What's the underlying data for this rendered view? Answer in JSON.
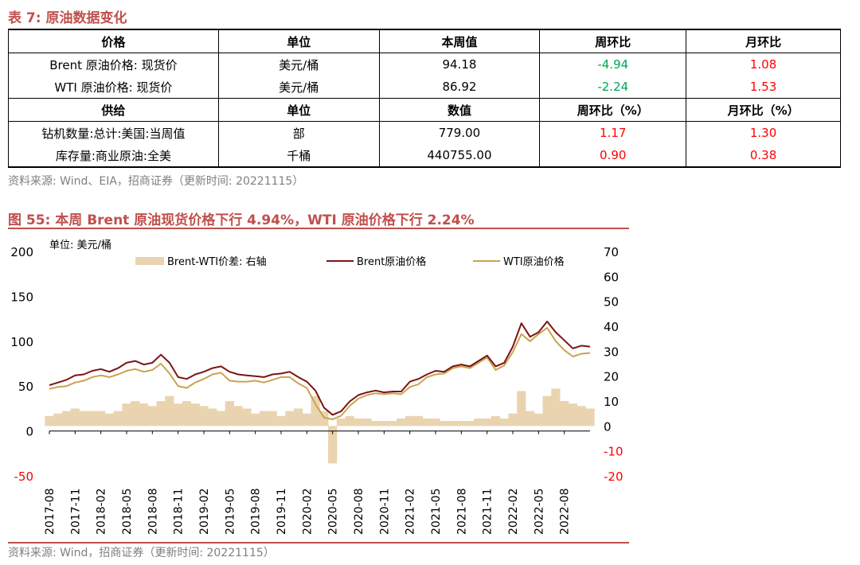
{
  "table": {
    "title": "表 7:  原油数据变化",
    "headers": [
      "价格",
      "单位",
      "本周值",
      "周环比",
      "月环比"
    ],
    "price_rows": [
      {
        "name": "Brent 原油价格:  现货价",
        "unit": "美元/桶",
        "value": "94.18",
        "wow": "-4.94",
        "mom": "1.08"
      },
      {
        "name": "WTI 原油价格:  现货价",
        "unit": "美元/桶",
        "value": "86.92",
        "wow": "-2.24",
        "mom": "1.53"
      }
    ],
    "supply_headers": [
      "供给",
      "单位",
      "数值",
      "周环比（%）",
      "月环比（%）"
    ],
    "supply_rows": [
      {
        "name": "钻机数量:总计:美国:当周值",
        "unit": "部",
        "value": "779.00",
        "wow": "1.17",
        "mom": "1.30"
      },
      {
        "name": "库存量:商业原油:全美",
        "unit": "千桶",
        "value": "440755.00",
        "wow": "0.90",
        "mom": "0.38"
      }
    ],
    "source": "资料来源:  Wind、EIA，招商证券（更新时间:  20221115）"
  },
  "figure": {
    "title": "图 55:  本周 Brent 原油现货价格下行 4.94%，WTI 原油价格下行 2.24%",
    "source": "资料来源:  Wind，招商证券（更新时间:  20221115）"
  },
  "colors": {
    "brent": "#7b1416",
    "wti": "#c8a450",
    "spread": "#ead4b0",
    "accent": "#c0504d",
    "green": "#00a651",
    "red": "#ff0000"
  },
  "chart_data": {
    "type": "line",
    "unit_label": "单位:  美元/桶",
    "legend": [
      "Brent-WTI价差:  右轴",
      "Brent原油价格",
      "WTI原油价格"
    ],
    "ylim_left": [
      -50,
      200
    ],
    "yticks_left": [
      "200",
      "150",
      "100",
      "50",
      "0",
      "-50"
    ],
    "ylim_right": [
      -20,
      70
    ],
    "yticks_right": [
      "70",
      "60",
      "50",
      "40",
      "30",
      "20",
      "10",
      "0",
      "-10",
      "-20"
    ],
    "x_tick_labels": [
      "2017-08",
      "2017-11",
      "2018-02",
      "2018-05",
      "2018-08",
      "2018-11",
      "2019-02",
      "2019-05",
      "2019-08",
      "2019-11",
      "2020-02",
      "2020-05",
      "2020-08",
      "2020-11",
      "2021-02",
      "2021-05",
      "2021-08",
      "2021-11",
      "2022-02",
      "2022-05",
      "2022-08"
    ],
    "x_month_range": [
      0,
      63
    ],
    "series": [
      {
        "name": "Brent原油价格",
        "points": [
          [
            0,
            51
          ],
          [
            1,
            54
          ],
          [
            2,
            57
          ],
          [
            3,
            62
          ],
          [
            4,
            63
          ],
          [
            5,
            67
          ],
          [
            6,
            69
          ],
          [
            7,
            66
          ],
          [
            8,
            70
          ],
          [
            9,
            76
          ],
          [
            10,
            78
          ],
          [
            11,
            74
          ],
          [
            12,
            76
          ],
          [
            13,
            85
          ],
          [
            14,
            76
          ],
          [
            15,
            60
          ],
          [
            16,
            58
          ],
          [
            17,
            63
          ],
          [
            18,
            66
          ],
          [
            19,
            70
          ],
          [
            20,
            72
          ],
          [
            21,
            66
          ],
          [
            22,
            63
          ],
          [
            23,
            62
          ],
          [
            24,
            61
          ],
          [
            25,
            60
          ],
          [
            26,
            63
          ],
          [
            27,
            64
          ],
          [
            28,
            66
          ],
          [
            29,
            60
          ],
          [
            30,
            55
          ],
          [
            31,
            45
          ],
          [
            32,
            26
          ],
          [
            33,
            18
          ],
          [
            34,
            22
          ],
          [
            35,
            33
          ],
          [
            36,
            40
          ],
          [
            37,
            43
          ],
          [
            38,
            45
          ],
          [
            39,
            43
          ],
          [
            40,
            44
          ],
          [
            41,
            44
          ],
          [
            42,
            55
          ],
          [
            43,
            58
          ],
          [
            44,
            63
          ],
          [
            45,
            67
          ],
          [
            46,
            66
          ],
          [
            47,
            72
          ],
          [
            48,
            74
          ],
          [
            49,
            72
          ],
          [
            50,
            78
          ],
          [
            51,
            84
          ],
          [
            52,
            72
          ],
          [
            53,
            76
          ],
          [
            54,
            94
          ],
          [
            55,
            120
          ],
          [
            56,
            105
          ],
          [
            57,
            110
          ],
          [
            58,
            122
          ],
          [
            59,
            110
          ],
          [
            60,
            101
          ],
          [
            61,
            92
          ],
          [
            62,
            95
          ],
          [
            63,
            94
          ]
        ]
      },
      {
        "name": "WTI原油价格",
        "points": [
          [
            0,
            47
          ],
          [
            1,
            49
          ],
          [
            2,
            50
          ],
          [
            3,
            54
          ],
          [
            4,
            56
          ],
          [
            5,
            60
          ],
          [
            6,
            62
          ],
          [
            7,
            60
          ],
          [
            8,
            63
          ],
          [
            9,
            67
          ],
          [
            10,
            69
          ],
          [
            11,
            66
          ],
          [
            12,
            68
          ],
          [
            13,
            75
          ],
          [
            14,
            64
          ],
          [
            15,
            50
          ],
          [
            16,
            48
          ],
          [
            17,
            54
          ],
          [
            18,
            58
          ],
          [
            19,
            63
          ],
          [
            20,
            65
          ],
          [
            21,
            56
          ],
          [
            22,
            55
          ],
          [
            23,
            55
          ],
          [
            24,
            56
          ],
          [
            25,
            54
          ],
          [
            26,
            57
          ],
          [
            27,
            60
          ],
          [
            28,
            60
          ],
          [
            29,
            53
          ],
          [
            30,
            48
          ],
          [
            31,
            30
          ],
          [
            32,
            15
          ],
          [
            33,
            13
          ],
          [
            34,
            17
          ],
          [
            35,
            28
          ],
          [
            36,
            36
          ],
          [
            37,
            40
          ],
          [
            38,
            42
          ],
          [
            39,
            41
          ],
          [
            40,
            42
          ],
          [
            41,
            41
          ],
          [
            42,
            49
          ],
          [
            43,
            52
          ],
          [
            44,
            60
          ],
          [
            45,
            63
          ],
          [
            46,
            64
          ],
          [
            47,
            70
          ],
          [
            48,
            72
          ],
          [
            49,
            70
          ],
          [
            50,
            76
          ],
          [
            51,
            82
          ],
          [
            52,
            68
          ],
          [
            53,
            73
          ],
          [
            54,
            88
          ],
          [
            55,
            108
          ],
          [
            56,
            100
          ],
          [
            57,
            108
          ],
          [
            58,
            115
          ],
          [
            59,
            100
          ],
          [
            60,
            90
          ],
          [
            61,
            83
          ],
          [
            62,
            86
          ],
          [
            63,
            87
          ]
        ]
      },
      {
        "name": "Brent-WTI价差",
        "points": [
          [
            0,
            4
          ],
          [
            1,
            5
          ],
          [
            2,
            6
          ],
          [
            3,
            7
          ],
          [
            4,
            6
          ],
          [
            5,
            6
          ],
          [
            6,
            6
          ],
          [
            7,
            5
          ],
          [
            8,
            6
          ],
          [
            9,
            9
          ],
          [
            10,
            10
          ],
          [
            11,
            9
          ],
          [
            12,
            8
          ],
          [
            13,
            10
          ],
          [
            14,
            12
          ],
          [
            15,
            9
          ],
          [
            16,
            10
          ],
          [
            17,
            9
          ],
          [
            18,
            8
          ],
          [
            19,
            7
          ],
          [
            20,
            6
          ],
          [
            21,
            10
          ],
          [
            22,
            8
          ],
          [
            23,
            7
          ],
          [
            24,
            5
          ],
          [
            25,
            6
          ],
          [
            26,
            6
          ],
          [
            27,
            4
          ],
          [
            28,
            6
          ],
          [
            29,
            7
          ],
          [
            30,
            5
          ],
          [
            31,
            12
          ],
          [
            32,
            6
          ],
          [
            33,
            -15
          ],
          [
            34,
            3
          ],
          [
            35,
            4
          ],
          [
            36,
            3
          ],
          [
            37,
            3
          ],
          [
            38,
            2
          ],
          [
            39,
            2
          ],
          [
            40,
            2
          ],
          [
            41,
            3
          ],
          [
            42,
            4
          ],
          [
            43,
            4
          ],
          [
            44,
            3
          ],
          [
            45,
            3
          ],
          [
            46,
            2
          ],
          [
            47,
            2
          ],
          [
            48,
            2
          ],
          [
            49,
            2
          ],
          [
            50,
            3
          ],
          [
            51,
            3
          ],
          [
            52,
            4
          ],
          [
            53,
            3
          ],
          [
            54,
            5
          ],
          [
            55,
            14
          ],
          [
            56,
            6
          ],
          [
            57,
            5
          ],
          [
            58,
            12
          ],
          [
            59,
            15
          ],
          [
            60,
            10
          ],
          [
            61,
            9
          ],
          [
            62,
            8
          ],
          [
            63,
            7
          ]
        ]
      }
    ]
  }
}
